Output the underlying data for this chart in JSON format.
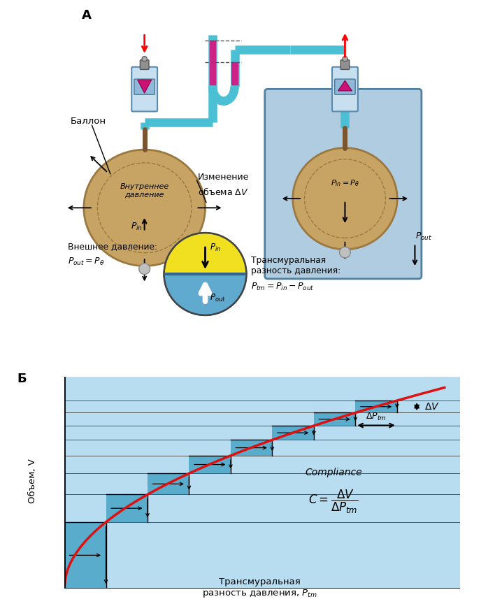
{
  "title_A": "А",
  "title_B": "Б",
  "bg_color": "#ffffff",
  "cyan_tube": "#4bbfd4",
  "magenta_tube": "#cc2288",
  "balloon_color": "#c8a464",
  "balloon_edge": "#9b7840",
  "box_blue_face": "#b0cce0",
  "box_blue_edge": "#5080a0",
  "yellow_half": "#f0e020",
  "blue_half": "#60aad0",
  "graph_bg": "#b8ddf0",
  "curve_color": "#dd1111",
  "stair_fill": "#5aaccc",
  "syringe_body": "#c8dff0",
  "syringe_edge": "#5a8ab0",
  "piston_face": "#90b8d8",
  "piston_edge": "#4a7a9b",
  "magenta_tri": "#cc1177",
  "screw_color": "#909090",
  "neck_color": "#7a5530",
  "connector_color": "#c0c0c0",
  "label_A": "Баллон",
  "label_internal": "Внутреннее\nдавление",
  "label_pin": "$P_{in}$",
  "label_external": "Внешнее давление:",
  "label_pout_eq": "$P_{out} = P_\\theta$",
  "label_izmenenie": "Изменение",
  "label_obema": "объема $\\Delta V$",
  "label_pin_pb": "$P_{in} = P_\\theta$",
  "label_pout": "$P_{out}$",
  "label_transmural": "Трансмуральная\nразность давления:",
  "label_ptm_eq": "$P_{tm} = P_{in} - P_{out}$",
  "label_circ_pin": "$P_{in}$",
  "label_circ_pout": "$P_{out}$",
  "graph_ylabel": "Объем, V",
  "graph_xlabel1": "Трансмуральная",
  "graph_xlabel2": "разность давления, $P_{tm}$",
  "compliance_label": "Compliance",
  "compliance_eq": "$C = \\dfrac{\\Delta V}{\\Delta P_{tm}}$",
  "delta_v_label": "$\\Delta V$",
  "delta_ptm_label": "$\\Delta P_{tm}$"
}
